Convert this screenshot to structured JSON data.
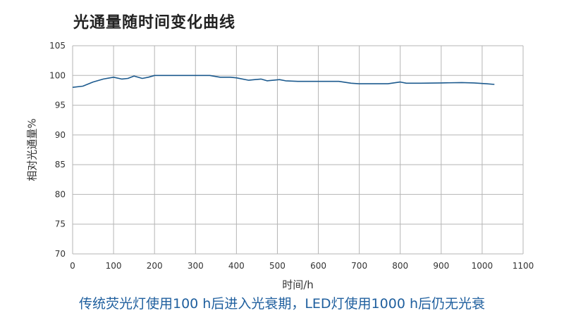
{
  "title": "光通量随时间变化曲线",
  "caption": "传统荧光灯使用100 h后进入光衰期，LED灯使用1000 h后仍无光衰",
  "colors": {
    "line": "#1c5a8e",
    "grid": "#b5b5b5",
    "caption": "#1f5f9e"
  },
  "chart_data": {
    "type": "line",
    "title": "光通量随时间变化曲线",
    "xlabel": "时间/h",
    "ylabel": "相对光通量%",
    "xlim": [
      0,
      1100
    ],
    "ylim": [
      70,
      105
    ],
    "xticks": [
      0,
      100,
      200,
      300,
      400,
      500,
      600,
      700,
      800,
      900,
      1000,
      1100
    ],
    "yticks": [
      70,
      75,
      80,
      85,
      90,
      95,
      100,
      105
    ],
    "grid": true,
    "series": [
      {
        "x": [
          0,
          25,
          50,
          75,
          100,
          120,
          135,
          150,
          170,
          185,
          200,
          225,
          250,
          300,
          335,
          360,
          385,
          400,
          430,
          445,
          460,
          475,
          490,
          505,
          520,
          550,
          600,
          650,
          680,
          700,
          740,
          770,
          800,
          815,
          850,
          900,
          950,
          980,
          1010,
          1030
        ],
        "y": [
          98.0,
          98.2,
          98.9,
          99.4,
          99.7,
          99.4,
          99.5,
          99.9,
          99.5,
          99.7,
          100.0,
          100.0,
          100.0,
          100.0,
          100.0,
          99.7,
          99.7,
          99.6,
          99.2,
          99.3,
          99.4,
          99.1,
          99.2,
          99.3,
          99.1,
          99.0,
          99.0,
          99.0,
          98.7,
          98.6,
          98.6,
          98.6,
          98.9,
          98.7,
          98.7,
          98.75,
          98.8,
          98.75,
          98.6,
          98.5
        ]
      }
    ]
  }
}
